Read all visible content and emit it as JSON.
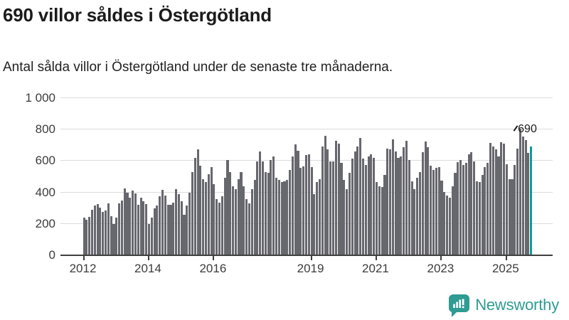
{
  "header": {
    "title": "690 villor såldes i Östergötland",
    "subtitle": "Antal sålda villor i Östergötland under de senaste tre månaderna."
  },
  "chart_data": {
    "type": "bar",
    "title": "690 villor såldes i Östergötland",
    "ylabel": "",
    "xlabel": "",
    "unit": "sålda villor (rullande tre månader)",
    "x_start": "2012-01",
    "x_freq": "monthly",
    "values": [
      235,
      220,
      240,
      285,
      310,
      320,
      300,
      270,
      280,
      325,
      245,
      195,
      235,
      325,
      345,
      420,
      395,
      360,
      405,
      390,
      315,
      360,
      340,
      320,
      195,
      235,
      295,
      310,
      370,
      410,
      375,
      315,
      315,
      330,
      415,
      385,
      340,
      255,
      310,
      395,
      525,
      615,
      670,
      565,
      480,
      460,
      510,
      555,
      450,
      355,
      330,
      370,
      490,
      600,
      525,
      435,
      415,
      480,
      525,
      435,
      355,
      325,
      415,
      475,
      595,
      655,
      595,
      525,
      520,
      600,
      625,
      490,
      475,
      460,
      465,
      475,
      540,
      625,
      700,
      660,
      550,
      560,
      635,
      640,
      555,
      385,
      460,
      480,
      690,
      755,
      670,
      595,
      595,
      725,
      705,
      585,
      475,
      415,
      520,
      610,
      655,
      690,
      740,
      610,
      570,
      625,
      640,
      615,
      460,
      435,
      430,
      505,
      675,
      670,
      735,
      655,
      615,
      625,
      685,
      725,
      600,
      465,
      415,
      490,
      525,
      650,
      720,
      685,
      565,
      540,
      550,
      555,
      470,
      400,
      375,
      360,
      435,
      520,
      590,
      600,
      570,
      585,
      640,
      650,
      595,
      465,
      460,
      505,
      555,
      585,
      710,
      690,
      670,
      625,
      715,
      705,
      575,
      480,
      480,
      570,
      675,
      800,
      750,
      730,
      645,
      690
    ],
    "highlight": {
      "index": 165,
      "value": 690,
      "label": "690",
      "color": "#0d9c94"
    },
    "bar_color": "#67676e",
    "ylim": [
      0,
      1000
    ],
    "yticks": [
      {
        "value": 0,
        "label": "0"
      },
      {
        "value": 200,
        "label": "200"
      },
      {
        "value": 400,
        "label": "400"
      },
      {
        "value": 600,
        "label": "600"
      },
      {
        "value": 800,
        "label": "800"
      },
      {
        "value": 1000,
        "label": "1 000"
      }
    ],
    "xticks": [
      {
        "label": "2012",
        "month_index": 0
      },
      {
        "label": "2014",
        "month_index": 24
      },
      {
        "label": "2016",
        "month_index": 48
      },
      {
        "label": "2019",
        "month_index": 84
      },
      {
        "label": "2021",
        "month_index": 108
      },
      {
        "label": "2023",
        "month_index": 132
      },
      {
        "label": "2025",
        "month_index": 156
      }
    ],
    "grid": "horizontal",
    "legend": "none"
  },
  "footer": {
    "brand": "Newsworthy",
    "brand_color": "#2e9c92",
    "icon": "newsworthy-speech-bubble-chart-icon"
  }
}
